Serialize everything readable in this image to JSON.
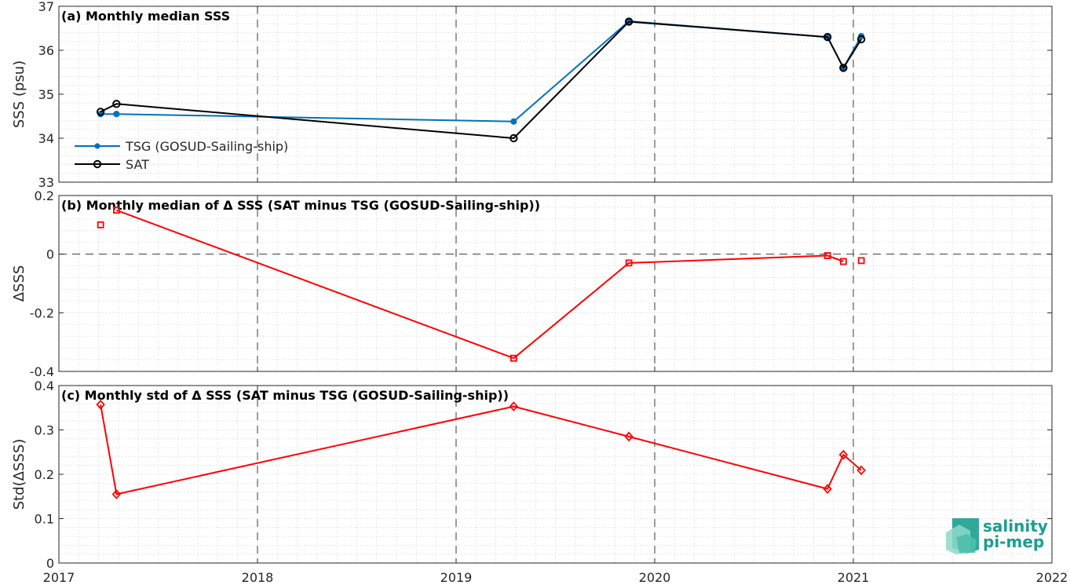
{
  "chart_data": [
    {
      "type": "line",
      "panel_id": "a",
      "title": "(a) Monthly median SSS",
      "ylabel": "SSS (psu)",
      "xlim": [
        2017,
        2022
      ],
      "ylim": [
        33,
        37
      ],
      "yticks": [
        33,
        34,
        35,
        36,
        37
      ],
      "ytick_labels": [
        "33",
        "34",
        "35",
        "36",
        "37"
      ],
      "grid": true,
      "legend_position": "bottom-left",
      "series": [
        {
          "name": "TSG (GOSUD-Sailing-ship)",
          "color": "#0072bd",
          "marker": "dot",
          "x": [
            2017.21,
            2017.29,
            2019.29,
            2019.87,
            2020.87,
            2020.95,
            2021.04
          ],
          "y": [
            34.55,
            34.55,
            34.38,
            36.66,
            36.3,
            35.6,
            36.32
          ]
        },
        {
          "name": "SAT",
          "color": "#000000",
          "marker": "circle",
          "x": [
            2017.21,
            2017.29,
            2019.29,
            2019.87,
            2020.87,
            2020.95,
            2021.04
          ],
          "y": [
            34.6,
            34.78,
            34.0,
            36.65,
            36.3,
            35.6,
            36.25
          ]
        }
      ]
    },
    {
      "type": "line",
      "panel_id": "b",
      "title": "(b) Monthly median of Δ SSS (SAT minus TSG (GOSUD-Sailing-ship))",
      "ylabel": "ΔSSS",
      "xlim": [
        2017,
        2022
      ],
      "ylim": [
        -0.4,
        0.2
      ],
      "yticks": [
        -0.4,
        -0.2,
        0,
        0.2
      ],
      "ytick_labels": [
        "-0.4",
        "-0.2",
        "0",
        "0.2"
      ],
      "grid": true,
      "zero_line": true,
      "series": [
        {
          "color": "#ff0000",
          "marker": "square",
          "segments": [
            {
              "x": [
                2017.21
              ],
              "y": [
                0.1
              ]
            },
            {
              "x": [
                2017.29,
                2019.29,
                2019.87,
                2020.87,
                2020.95
              ],
              "y": [
                0.15,
                -0.355,
                -0.03,
                -0.005,
                -0.025
              ]
            },
            {
              "x": [
                2021.04
              ],
              "y": [
                -0.022
              ]
            }
          ]
        }
      ]
    },
    {
      "type": "line",
      "panel_id": "c",
      "title": "(c) Monthly std of Δ SSS (SAT minus TSG (GOSUD-Sailing-ship))",
      "ylabel": "Std(ΔSSS)",
      "xlim": [
        2017,
        2022
      ],
      "ylim": [
        0,
        0.4
      ],
      "yticks": [
        0,
        0.1,
        0.2,
        0.3,
        0.4
      ],
      "ytick_labels": [
        "0",
        "0.1",
        "0.2",
        "0.3",
        "0.4"
      ],
      "grid": true,
      "series": [
        {
          "color": "#ff0000",
          "marker": "diamond",
          "segments": [
            {
              "x": [
                2017.21,
                2017.29,
                2019.29,
                2019.87,
                2020.87,
                2020.95,
                2021.04
              ],
              "y": [
                0.357,
                0.155,
                0.353,
                0.285,
                0.167,
                0.244,
                0.209
              ]
            }
          ]
        }
      ]
    }
  ],
  "xaxis": {
    "ticks": [
      2017,
      2018,
      2019,
      2020,
      2021,
      2022
    ],
    "labels": [
      "2017",
      "2018",
      "2019",
      "2020",
      "2021",
      "2022"
    ]
  },
  "logo": {
    "line1": "salinity",
    "line2": "pi-mep",
    "color": "#1a9e8f"
  }
}
